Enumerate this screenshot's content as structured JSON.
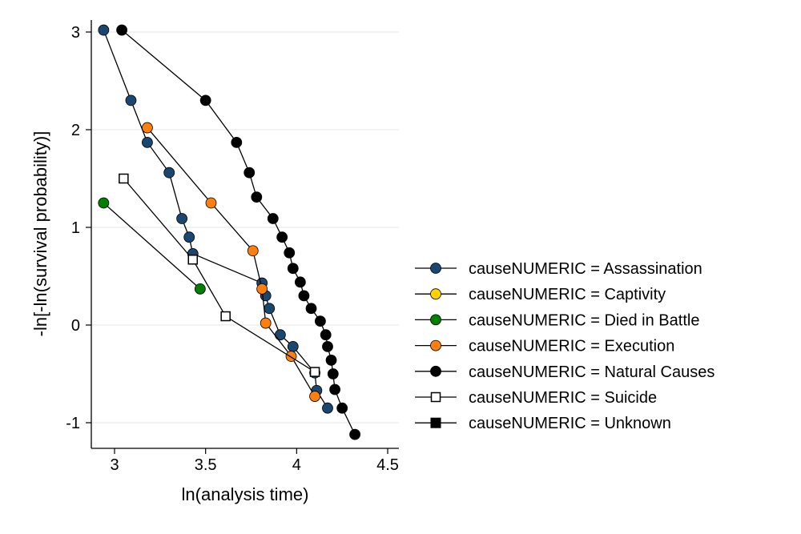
{
  "chart_data": {
    "type": "line",
    "xlabel": "ln(analysis time)",
    "ylabel": "-ln[-ln(survival probability)]",
    "xlim": [
      2.93,
      4.55
    ],
    "ylim": [
      -1.2,
      3.1
    ],
    "xticks": [
      3,
      3.5,
      4,
      4.5
    ],
    "xtick_labels": [
      "3",
      "3.5",
      "4",
      "4.5"
    ],
    "yticks": [
      -1,
      0,
      1,
      2,
      3
    ],
    "ytick_labels": [
      "-1",
      "0",
      "1",
      "2",
      "3"
    ],
    "grid": "horizontal",
    "legend_position": "right",
    "series": [
      {
        "name": "causeNUMERIC = Assassination",
        "color": "#1a476f",
        "marker": "circle-filled",
        "x": [
          2.94,
          3.09,
          3.18,
          3.3,
          3.37,
          3.41,
          3.43,
          3.81,
          3.83,
          3.85,
          3.91,
          3.98,
          4.1,
          4.11,
          4.17
        ],
        "y": [
          3.02,
          2.3,
          1.87,
          1.56,
          1.09,
          0.9,
          0.73,
          0.43,
          0.3,
          0.17,
          -0.1,
          -0.22,
          -0.49,
          -0.67,
          -0.85
        ]
      },
      {
        "name": "causeNUMERIC = Captivity",
        "color": "#ffd200",
        "marker": "circle-filled",
        "x": [],
        "y": []
      },
      {
        "name": "causeNUMERIC = Died in Battle",
        "color": "#007f00",
        "marker": "circle-filled",
        "x": [
          2.94,
          3.47
        ],
        "y": [
          1.25,
          0.37
        ]
      },
      {
        "name": "causeNUMERIC = Execution",
        "color": "#ff7f0e",
        "marker": "circle-filled",
        "x": [
          3.18,
          3.53,
          3.76,
          3.81,
          3.83,
          3.97,
          4.1
        ],
        "y": [
          2.02,
          1.25,
          0.76,
          0.37,
          0.02,
          -0.32,
          -0.73
        ]
      },
      {
        "name": "causeNUMERIC = Natural Causes",
        "color": "#000000",
        "marker": "circle-filled",
        "x": [
          3.04,
          3.5,
          3.67,
          3.74,
          3.78,
          3.87,
          3.92,
          3.96,
          3.98,
          4.02,
          4.04,
          4.08,
          4.13,
          4.16,
          4.17,
          4.19,
          4.2,
          4.21,
          4.25,
          4.32
        ],
        "y": [
          3.02,
          2.3,
          1.87,
          1.56,
          1.31,
          1.09,
          0.9,
          0.74,
          0.58,
          0.44,
          0.3,
          0.17,
          0.04,
          -0.1,
          -0.22,
          -0.36,
          -0.5,
          -0.66,
          -0.85,
          -1.12
        ]
      },
      {
        "name": "causeNUMERIC = Suicide",
        "color": "#000000",
        "marker": "square-hollow",
        "x": [
          3.05,
          3.43,
          3.61,
          4.1
        ],
        "y": [
          1.5,
          0.67,
          0.09,
          -0.48
        ]
      },
      {
        "name": "causeNUMERIC = Unknown",
        "color": "#000000",
        "marker": "square-filled",
        "x": [],
        "y": []
      }
    ]
  }
}
